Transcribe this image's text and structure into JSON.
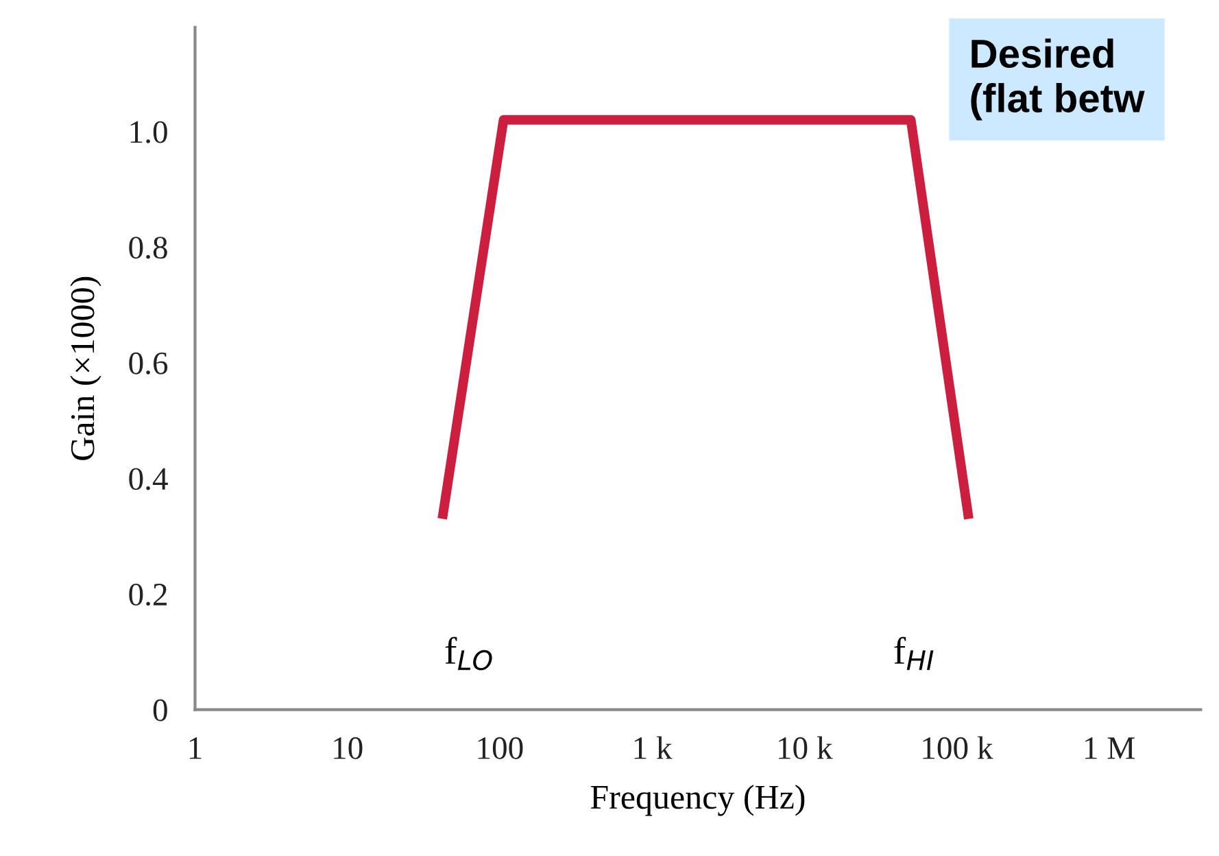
{
  "chart_data": {
    "type": "line",
    "xlabel": "Frequency (Hz)",
    "ylabel": "Gain (×1000)",
    "log": "x",
    "x": [
      42,
      106,
      50000,
      120000
    ],
    "series": [
      {
        "color": "#cc1f3f",
        "values": [
          0.33,
          1.02,
          1.02,
          0.33
        ]
      }
    ],
    "xlim": [
      1,
      4000000
    ],
    "ylim": [
      0,
      1.18
    ],
    "xticks": [
      {
        "value": 1,
        "label": "1"
      },
      {
        "value": 10,
        "label": "10"
      },
      {
        "value": 100,
        "label": "100"
      },
      {
        "value": 1000,
        "label": "1 k"
      },
      {
        "value": 10000,
        "label": "10 k"
      },
      {
        "value": 100000,
        "label": "100 k"
      },
      {
        "value": 1000000,
        "label": "1 M"
      }
    ],
    "yticks": [
      {
        "value": 0,
        "label": "0"
      },
      {
        "value": 0.2,
        "label": "0.2"
      },
      {
        "value": 0.4,
        "label": "0.4"
      },
      {
        "value": 0.6,
        "label": "0.6"
      },
      {
        "value": 0.8,
        "label": "0.8"
      },
      {
        "value": 1.0,
        "label": "1.0"
      }
    ],
    "annotations": [
      "f$_{LO}$",
      "f$_{HI}$",
      "Desired\n(flat betw"
    ],
    "grid": false,
    "legend": false,
    "marker": "none",
    "line_style": "solid"
  }
}
